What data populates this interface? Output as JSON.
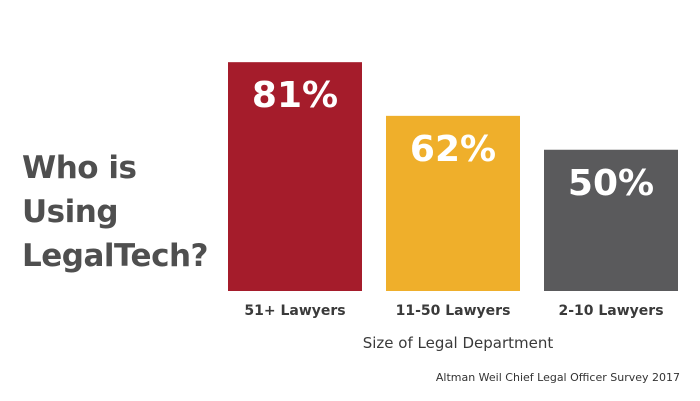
{
  "chart_data": {
    "type": "bar",
    "title": "Who is Using LegalTech?",
    "categories": [
      "51+ Lawyers",
      "11-50 Lawyers",
      "2-10 Lawyers"
    ],
    "values": [
      81,
      62,
      50
    ],
    "value_labels": [
      "81%",
      "62%",
      "50%"
    ],
    "colors": [
      "#a51c2b",
      "#efaf2b",
      "#5a5a5c"
    ],
    "xlabel": "Size of Legal Department",
    "ylabel": "",
    "ylim": [
      0,
      100
    ],
    "grid": false,
    "legend": "none"
  },
  "source_note": "Altman Weil Chief Legal Officer Survey 2017",
  "text_color": "#4f4f4f"
}
